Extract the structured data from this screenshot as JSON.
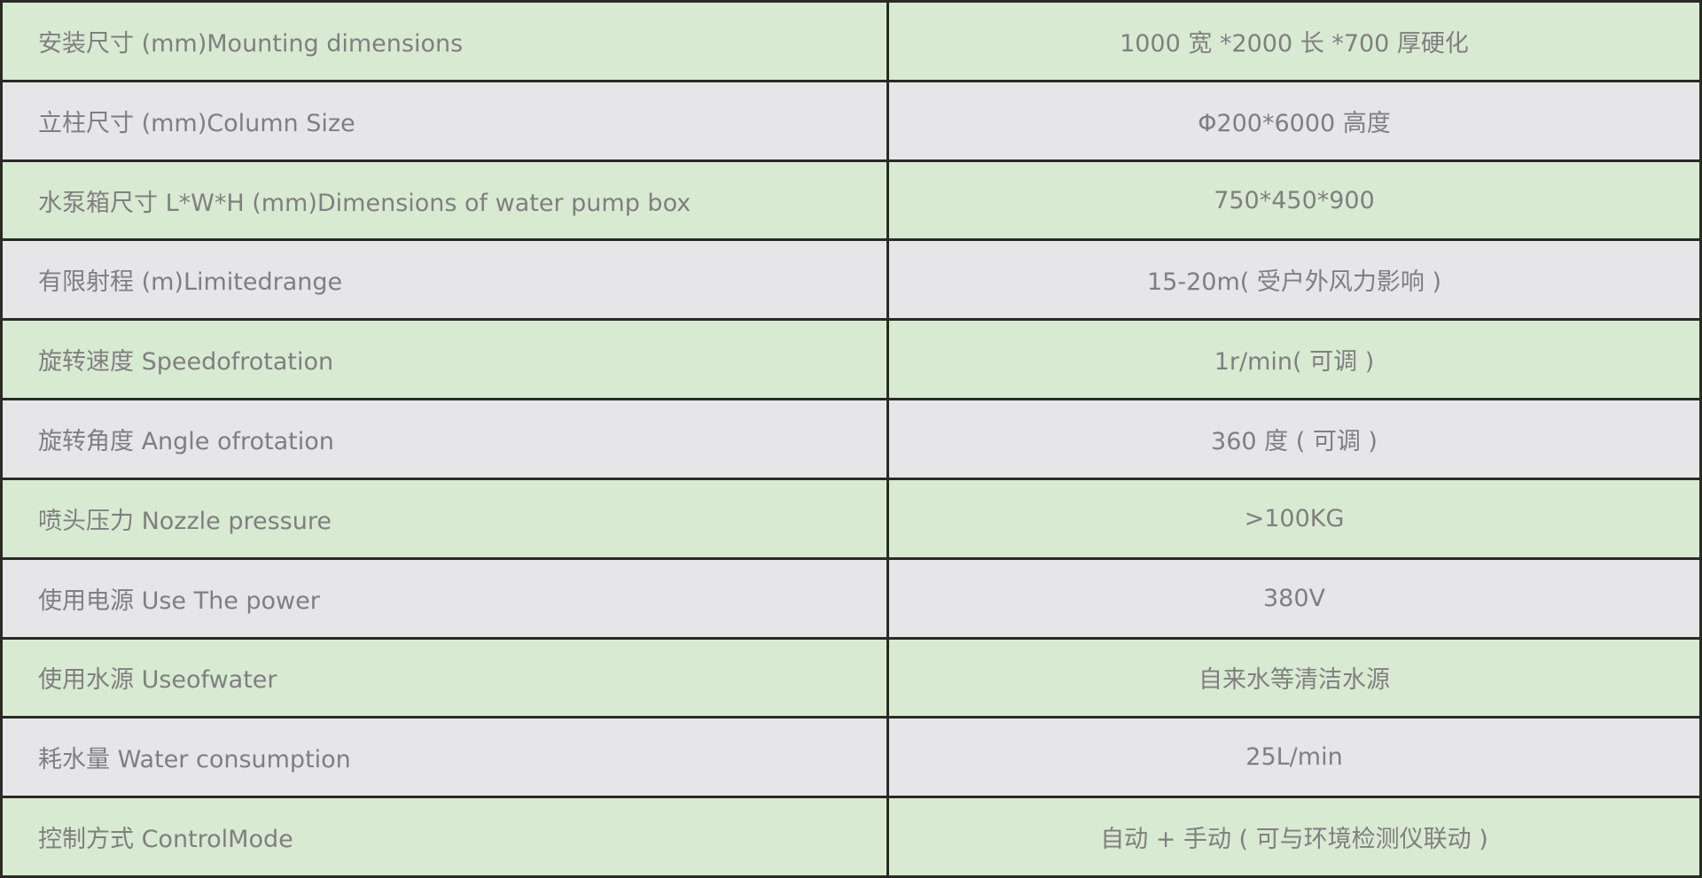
{
  "colors": {
    "green_row": "#d9ead3",
    "gray_row": "#e6e6e8",
    "text": "#7f7f7f",
    "border": "#2a2a26"
  },
  "rows": [
    {
      "label": "安装尺寸 (mm)Mounting dimensions",
      "value": "1000 宽 *2000 长 *700 厚硬化"
    },
    {
      "label": "立柱尺寸 (mm)Column Size",
      "value": "Φ200*6000 高度"
    },
    {
      "label": "水泵箱尺寸 L*W*H (mm)Dimensions of water pump box",
      "value": "750*450*900"
    },
    {
      "label": "有限射程 (m)Limitedrange",
      "value": "15-20m( 受户外风力影响 )"
    },
    {
      "label": "旋转速度 Speedofrotation",
      "value": "1r/min( 可调 )"
    },
    {
      "label": "旋转角度 Angle ofrotation",
      "value": "360 度 ( 可调 )"
    },
    {
      "label": "喷头压力 Nozzle pressure",
      "value": ">100KG"
    },
    {
      "label": "使用电源 Use The power",
      "value": "380V"
    },
    {
      "label": "使用水源 Useofwater",
      "value": "自来水等清洁水源"
    },
    {
      "label": "耗水量 Water consumption",
      "value": "25L/min"
    },
    {
      "label": "控制方式 ControlMode",
      "value": "自动 + 手动 ( 可与环境检测仪联动 )"
    }
  ]
}
